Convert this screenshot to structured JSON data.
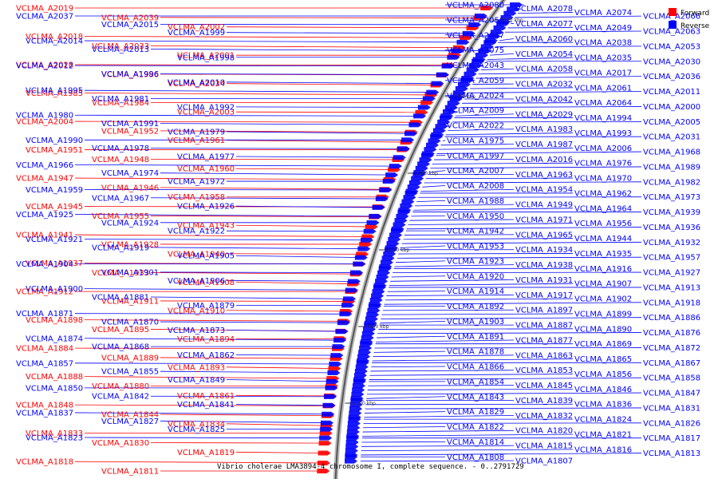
{
  "legend": {
    "forward_label": "Forward",
    "reverse_label": "Reverse",
    "forward_color": "#ff0000",
    "reverse_color": "#0000ff"
  },
  "caption": "Vibrio cholerae LMA3894-4 chromosome I, complete sequence. - 0..2791729",
  "ticks": [
    "2350 kbp",
    "2300 kbp",
    "2250 kbp",
    "2200 kbp",
    "2150 kbp",
    "2100 kbp"
  ],
  "forward_labels": [
    "VCLMA_A2019",
    "VCLMA_A2039",
    "VCLMA_A2002",
    "VCLMA_A2018",
    "VCLMA_A2033",
    "VCLMA_A2001",
    "VCLMA_A2028",
    "VCLMA_A1986",
    "VCLMA_A2034",
    "VCLMA_A1985",
    "VCLMA_A1984",
    "VCLMA_A2003",
    "VCLMA_A2004",
    "VCLMA_A1952",
    "VCLMA_A1961",
    "VCLMA_A1951",
    "VCLMA_A1948",
    "VCLMA_A1960",
    "VCLMA_A1947",
    "VCLMA_A1946",
    "VCLMA_A1958",
    "VCLMA_A1945",
    "VCLMA_A1955",
    "VCLMA_A1943",
    "VCLMA_A1941",
    "VCLMA_A1928",
    "VCLMA_A1940",
    "VCLMA_A1937",
    "VCLMA_A1933",
    "VCLMA_A1908",
    "VCLMA_A1912",
    "VCLMA_A1911",
    "VCLMA_A1910",
    "VCLMA_A1898",
    "VCLMA_A1895",
    "VCLMA_A1894",
    "VCLMA_A1884",
    "VCLMA_A1889",
    "VCLMA_A1893",
    "VCLMA_A1888",
    "VCLMA_A1880",
    "VCLMA_A1861",
    "VCLMA_A1848",
    "VCLMA_A1844",
    "VCLMA_A1834",
    "VCLMA_A1833",
    "VCLMA_A1830",
    "VCLMA_A1819",
    "VCLMA_A1818",
    "VCLMA_A1811"
  ],
  "reverse_labels_left": [
    "VCLMA_A2037",
    "VCLMA_A2015",
    "VCLMA_A1999",
    "VCLMA_A2014",
    "VCLMA_A2013",
    "VCLMA_A1998",
    "VCLMA_A2012",
    "VCLMA_A1996",
    "VCLMA_A2010",
    "VCLMA_A1995",
    "VCLMA_A1981",
    "VCLMA_A1992",
    "VCLMA_A1980",
    "VCLMA_A1991",
    "VCLMA_A1979",
    "VCLMA_A1990",
    "VCLMA_A1978",
    "VCLMA_A1977",
    "VCLMA_A1966",
    "VCLMA_A1974",
    "VCLMA_A1972",
    "VCLMA_A1959",
    "VCLMA_A1967",
    "VCLMA_A1926",
    "VCLMA_A1925",
    "VCLMA_A1924",
    "VCLMA_A1922",
    "VCLMA_A1921",
    "VCLMA_A1919",
    "VCLMA_A1905",
    "VCLMA_A1904",
    "VCLMA_A1901",
    "VCLMA_A1906",
    "VCLMA_A1900",
    "VCLMA_A1881",
    "VCLMA_A1879",
    "VCLMA_A1871",
    "VCLMA_A1870",
    "VCLMA_A1873",
    "VCLMA_A1874",
    "VCLMA_A1868",
    "VCLMA_A1862",
    "VCLMA_A1857",
    "VCLMA_A1855",
    "VCLMA_A1849",
    "VCLMA_A1850",
    "VCLMA_A1842",
    "VCLMA_A1841",
    "VCLMA_A1837",
    "VCLMA_A1827",
    "VCLMA_A1825",
    "VCLMA_A1823"
  ],
  "reverse_labels_right": [
    "VCLMA_A2080",
    "VCLMA_A2078",
    "VCLMA_A2074",
    "VCLMA_A2066",
    "VCLMA_A2056",
    "VCLMA_A2077",
    "VCLMA_A2049",
    "VCLMA_A2063",
    "VCLMA_A2047",
    "VCLMA_A2060",
    "VCLMA_A2038",
    "VCLMA_A2053",
    "VCLMA_A2075",
    "VCLMA_A2054",
    "VCLMA_A2035",
    "VCLMA_A2030",
    "VCLMA_A2043",
    "VCLMA_A2058",
    "VCLMA_A2017",
    "VCLMA_A2036",
    "VCLMA_A2059",
    "VCLMA_A2032",
    "VCLMA_A2061",
    "VCLMA_A2011",
    "VCLMA_A2024",
    "VCLMA_A2042",
    "VCLMA_A2064",
    "VCLMA_A2000",
    "VCLMA_A2009",
    "VCLMA_A2029",
    "VCLMA_A1994",
    "VCLMA_A2005",
    "VCLMA_A2022",
    "VCLMA_A1983",
    "VCLMA_A1993",
    "VCLMA_A2031",
    "VCLMA_A1975",
    "VCLMA_A1987",
    "VCLMA_A2006",
    "VCLMA_A1968",
    "VCLMA_A1997",
    "VCLMA_A2016",
    "VCLMA_A1976",
    "VCLMA_A1989",
    "VCLMA_A2007",
    "VCLMA_A1963",
    "VCLMA_A1970",
    "VCLMA_A1982",
    "VCLMA_A2008",
    "VCLMA_A1954",
    "VCLMA_A1962",
    "VCLMA_A1973",
    "VCLMA_A1988",
    "VCLMA_A1949",
    "VCLMA_A1964",
    "VCLMA_A1939",
    "VCLMA_A1950",
    "VCLMA_A1971",
    "VCLMA_A1956",
    "VCLMA_A1936",
    "VCLMA_A1942",
    "VCLMA_A1965",
    "VCLMA_A1944",
    "VCLMA_A1932",
    "VCLMA_A1953",
    "VCLMA_A1934",
    "VCLMA_A1935",
    "VCLMA_A1957",
    "VCLMA_A1923",
    "VCLMA_A1938",
    "VCLMA_A1916",
    "VCLMA_A1927",
    "VCLMA_A1920",
    "VCLMA_A1931",
    "VCLMA_A1907",
    "VCLMA_A1913",
    "VCLMA_A1914",
    "VCLMA_A1917",
    "VCLMA_A1902",
    "VCLMA_A1918",
    "VCLMA_A1892",
    "VCLMA_A1897",
    "VCLMA_A1899",
    "VCLMA_A1886",
    "VCLMA_A1903",
    "VCLMA_A1887",
    "VCLMA_A1890",
    "VCLMA_A1876",
    "VCLMA_A1891",
    "VCLMA_A1877",
    "VCLMA_A1869",
    "VCLMA_A1872",
    "VCLMA_A1878",
    "VCLMA_A1863",
    "VCLMA_A1865",
    "VCLMA_A1867",
    "VCLMA_A1866",
    "VCLMA_A1853",
    "VCLMA_A1856",
    "VCLMA_A1858",
    "VCLMA_A1854",
    "VCLMA_A1845",
    "VCLMA_A1846",
    "VCLMA_A1847",
    "VCLMA_A1843",
    "VCLMA_A1839",
    "VCLMA_A1836",
    "VCLMA_A1831",
    "VCLMA_A1829",
    "VCLMA_A1832",
    "VCLMA_A1824",
    "VCLMA_A1826",
    "VCLMA_A1822",
    "VCLMA_A1820",
    "VCLMA_A1821",
    "VCLMA_A1817",
    "VCLMA_A1814",
    "VCLMA_A1815",
    "VCLMA_A1816",
    "VCLMA_A1813",
    "VCLMA_A1808",
    "VCLMA_A1807"
  ]
}
